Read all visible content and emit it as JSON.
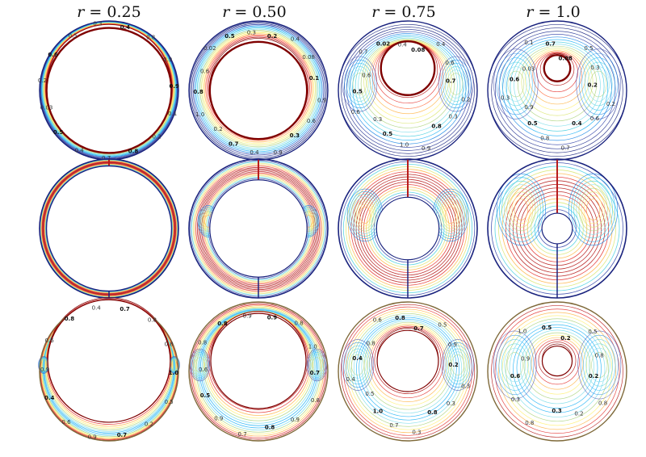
{
  "columns": [
    {
      "var": "r",
      "op": "=",
      "value": "0.25",
      "hole": 0.9
    },
    {
      "var": "r",
      "op": "=",
      "value": "0.50",
      "hole": 0.7
    },
    {
      "var": "r",
      "op": "=",
      "value": "0.75",
      "hole": 0.45
    },
    {
      "var": "r",
      "op": "=",
      "value": "1.0",
      "hole": 0.22
    }
  ],
  "rows": [
    {
      "kind": "contours"
    },
    {
      "kind": "streamlines"
    },
    {
      "kind": "contours"
    }
  ],
  "panel_labels": [
    [
      [
        "0.4",
        "0.8",
        "0.9",
        "0.9",
        "0.1",
        "0.2",
        "0.8",
        "0.7",
        "0.4",
        "0.5",
        "0.03",
        "0.2",
        "0.6",
        "0.5",
        "0.3"
      ],
      [
        "0.2",
        "0.4",
        "0.08",
        "0.1",
        "0.9",
        "0.6",
        "0.3",
        "0.9",
        "0.4",
        "0.7",
        "0.2",
        "1.0",
        "0.8",
        "0.6",
        "0.02",
        "0.5",
        "0.3"
      ],
      [
        "0.08",
        "0.4",
        "0.6",
        "0.7",
        "0.2",
        "0.3",
        "0.8",
        "0.9",
        "1.0",
        "0.5",
        "0.3",
        "0.6",
        "0.5",
        "0.6",
        "0.7",
        "0.02",
        "0.4"
      ],
      [
        "0.08",
        "0.5",
        "0.3",
        "0.2",
        "0.2",
        "0.6",
        "0.4",
        "0.7",
        "0.8",
        "0.5",
        "0.9",
        "0.3",
        "0.6",
        "0.03",
        "0.1",
        "0.7"
      ]
    ],
    [
      [],
      [],
      [],
      []
    ],
    [
      [
        "0.7",
        "0.8",
        "0.8",
        "1.0",
        "0.5",
        "0.2",
        "0.7",
        "0.9",
        "0.6",
        "0.4",
        "0.9",
        "0.6",
        "0.8",
        "0.4"
      ],
      [
        "0.9",
        "0.8",
        "1.0",
        "0.7",
        "0.8",
        "0.9",
        "0.8",
        "0.7",
        "0.9",
        "0.5",
        "0.6",
        "0.8",
        "0.8",
        "0.9"
      ],
      [
        "0.7",
        "0.5",
        "0.9",
        "0.2",
        "0.3",
        "0.3",
        "0.8",
        "0.3",
        "0.7",
        "1.0",
        "0.5",
        "0.4",
        "0.4",
        "0.8",
        "0.6",
        "0.8"
      ],
      [
        "0.2",
        "0.5",
        "0.8",
        "0.2",
        "0.8",
        "0.2",
        "0.3",
        "0.8",
        "0.3",
        "0.6",
        "0.9",
        "1.0",
        "0.5"
      ]
    ]
  ]
}
